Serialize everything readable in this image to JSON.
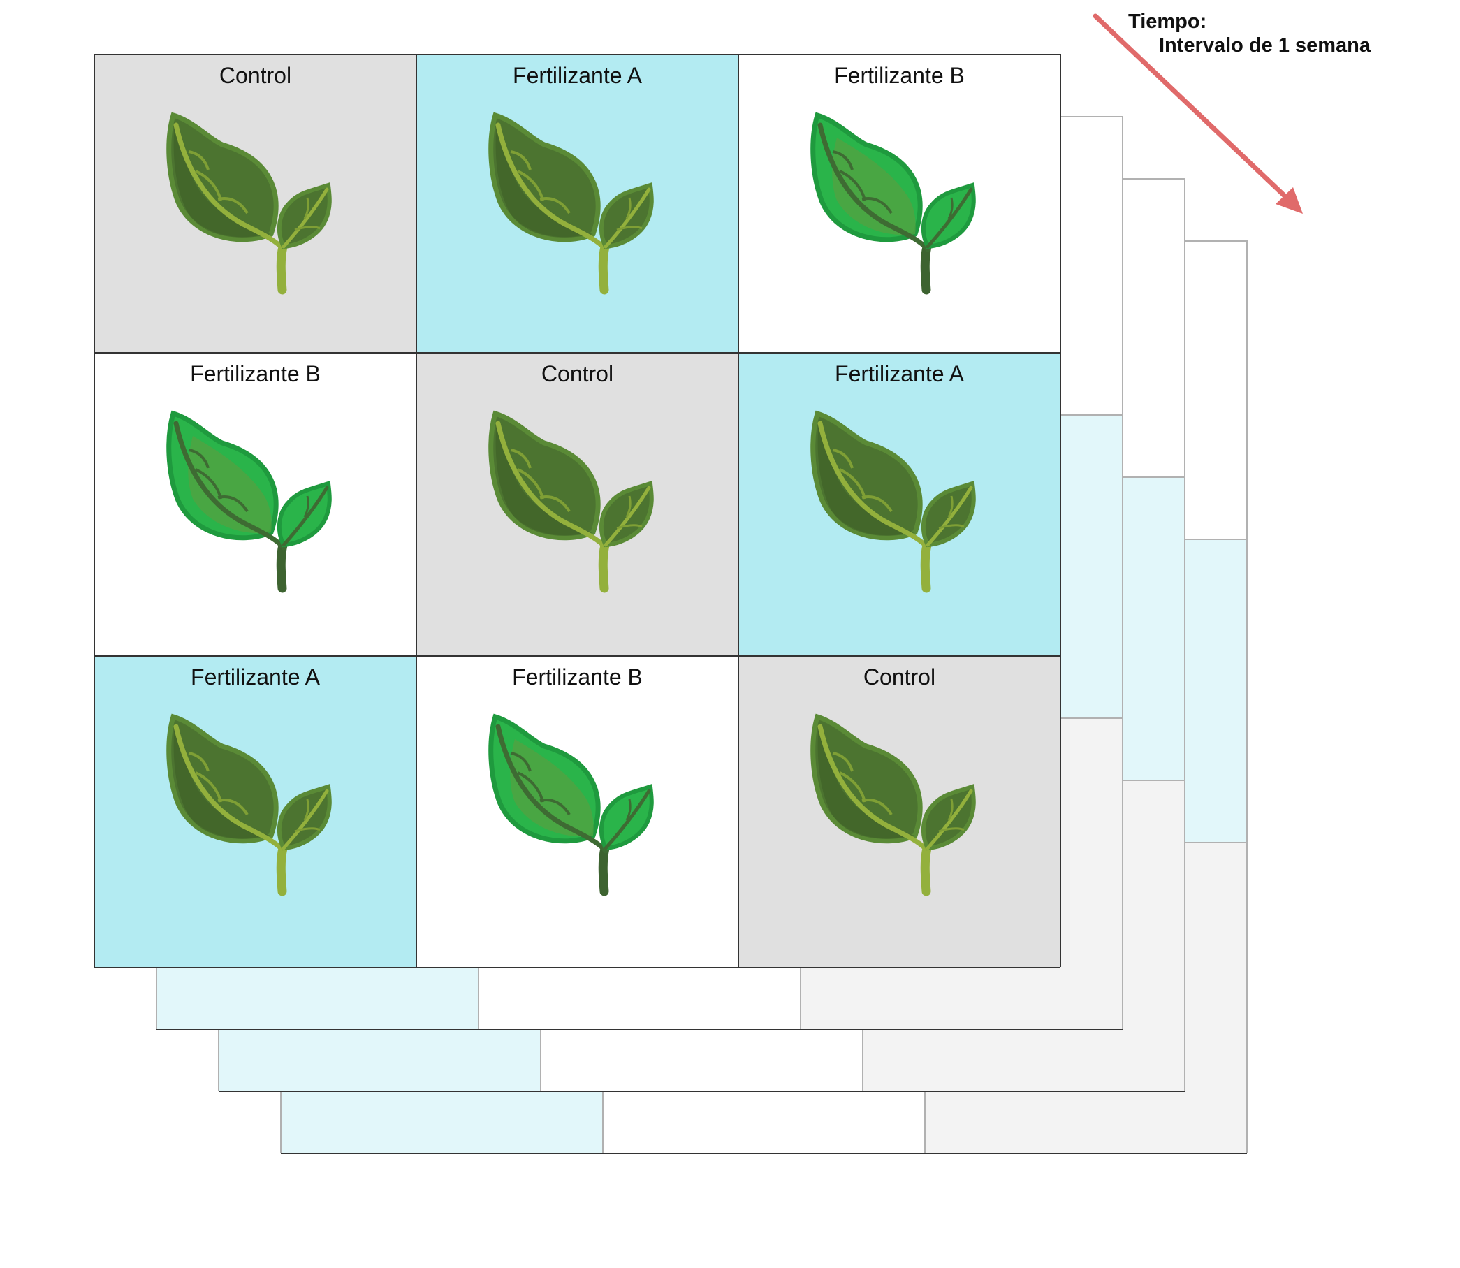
{
  "time_label": {
    "line1": "Tiempo:",
    "line2": "Intervalo de 1 semana"
  },
  "arrow_color": "#e06a6a",
  "treatment_colors": {
    "Control": "#e0e0e0",
    "Fertilizante A": "#b3ebf2",
    "Fertilizante B": "#ffffff"
  },
  "front_grid": {
    "cells": [
      {
        "label": "Control",
        "plant": "dark-seedling-icon"
      },
      {
        "label": "Fertilizante A",
        "plant": "dark-seedling-icon"
      },
      {
        "label": "Fertilizante B",
        "plant": "bright-seedling-icon"
      },
      {
        "label": "Fertilizante B",
        "plant": "bright-seedling-icon"
      },
      {
        "label": "Control",
        "plant": "dark-seedling-icon"
      },
      {
        "label": "Fertilizante A",
        "plant": "dark-seedling-icon"
      },
      {
        "label": "Fertilizante A",
        "plant": "dark-seedling-icon"
      },
      {
        "label": "Fertilizante B",
        "plant": "bright-seedling-icon"
      },
      {
        "label": "Control",
        "plant": "dark-seedling-icon"
      }
    ]
  },
  "stack_count": 4
}
